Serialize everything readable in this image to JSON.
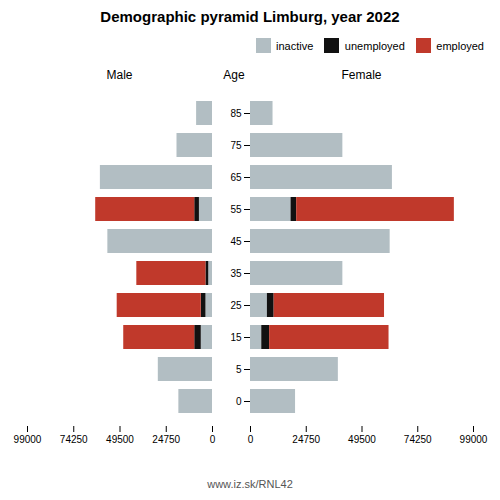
{
  "title": "Demographic pyramid Limburg, year 2022",
  "annotations": [
    "www.iz.sk/RNL42"
  ],
  "chart_data": [
    {
      "type": "bar",
      "orientation": "horizontal",
      "stacked": true,
      "title": "Male",
      "categories": [
        "85",
        "75",
        "65",
        "55",
        "45",
        "35",
        "25",
        "15",
        "5",
        "0"
      ],
      "series": [
        {
          "name": "inactive",
          "color": "#b2bec3",
          "values": [
            8500,
            19000,
            60000,
            7000,
            56000,
            2000,
            3500,
            6000,
            29000,
            18000
          ]
        },
        {
          "name": "unemployed",
          "color": "#111111",
          "values": [
            0,
            0,
            0,
            2500,
            0,
            1500,
            2500,
            3500,
            0,
            0
          ]
        },
        {
          "name": "employed",
          "color": "#c0392b",
          "values": [
            0,
            0,
            0,
            53000,
            0,
            37000,
            45000,
            38000,
            0,
            0
          ]
        }
      ],
      "xlim": [
        99000,
        0
      ],
      "xticks": [
        99000,
        74250,
        49500,
        24750,
        0
      ],
      "grid": false,
      "tick_labels": "x"
    },
    {
      "type": "bar",
      "orientation": "horizontal",
      "stacked": true,
      "title": "Female",
      "ylabel": "Age",
      "categories": [
        "85",
        "75",
        "65",
        "55",
        "45",
        "35",
        "25",
        "15",
        "5",
        "0"
      ],
      "series": [
        {
          "name": "inactive",
          "color": "#b2bec3",
          "values": [
            10000,
            41000,
            63000,
            18000,
            62000,
            41000,
            7500,
            5000,
            39000,
            20000
          ]
        },
        {
          "name": "unemployed",
          "color": "#111111",
          "values": [
            0,
            0,
            0,
            2500,
            0,
            0,
            3000,
            3500,
            0,
            0
          ]
        },
        {
          "name": "employed",
          "color": "#c0392b",
          "values": [
            0,
            0,
            0,
            70000,
            0,
            0,
            49000,
            53000,
            0,
            0
          ]
        }
      ],
      "xlim": [
        0,
        99000
      ],
      "xticks": [
        0,
        24750,
        49500,
        74250,
        99000
      ],
      "grid": false,
      "legend": "upper right"
    }
  ]
}
